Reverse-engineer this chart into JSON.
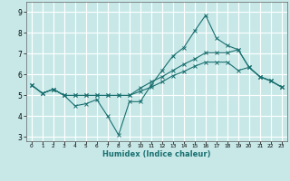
{
  "xlabel": "Humidex (Indice chaleur)",
  "background_color": "#c8e8e8",
  "grid_color": "#ffffff",
  "line_color": "#1a7070",
  "xlim": [
    -0.5,
    23.5
  ],
  "ylim": [
    2.8,
    9.5
  ],
  "yticks": [
    3,
    4,
    5,
    6,
    7,
    8,
    9
  ],
  "xticks": [
    0,
    1,
    2,
    3,
    4,
    5,
    6,
    7,
    8,
    9,
    10,
    11,
    12,
    13,
    14,
    15,
    16,
    17,
    18,
    19,
    20,
    21,
    22,
    23
  ],
  "lines": [
    [
      5.5,
      5.1,
      5.3,
      5.0,
      4.5,
      4.6,
      4.8,
      4.0,
      3.1,
      4.7,
      4.7,
      5.5,
      6.2,
      6.9,
      7.3,
      8.1,
      8.85,
      7.75,
      7.4,
      7.2,
      6.35,
      5.9,
      5.7,
      5.4
    ],
    [
      5.5,
      5.1,
      5.3,
      5.0,
      5.0,
      5.0,
      5.0,
      5.0,
      5.0,
      5.0,
      5.35,
      5.65,
      5.9,
      6.2,
      6.5,
      6.75,
      7.05,
      7.05,
      7.05,
      7.2,
      6.35,
      5.9,
      5.7,
      5.4
    ],
    [
      5.5,
      5.1,
      5.3,
      5.0,
      5.0,
      5.0,
      5.0,
      5.0,
      5.0,
      5.0,
      5.2,
      5.4,
      5.65,
      5.95,
      6.15,
      6.4,
      6.6,
      6.6,
      6.6,
      6.2,
      6.35,
      5.9,
      5.7,
      5.4
    ]
  ]
}
